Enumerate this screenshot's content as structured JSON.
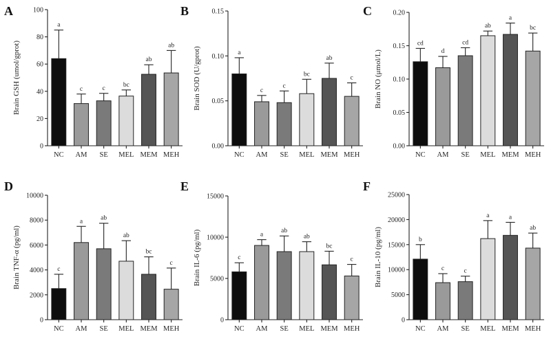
{
  "colors": {
    "NC": "#0d0d0d",
    "AM": "#9a9a9a",
    "SE": "#7a7a7a",
    "MEL": "#dcdcdc",
    "MEM": "#555555",
    "MEH": "#a6a6a6"
  },
  "chart_data": [
    {
      "panel": "A",
      "type": "bar",
      "ylabel": "Brain GSH (umol/gprot)",
      "ylim": [
        0,
        100
      ],
      "yticks": [
        "0",
        "20",
        "40",
        "60",
        "80",
        "100"
      ],
      "ytick_values": [
        0,
        20,
        40,
        60,
        80,
        100
      ],
      "categories": [
        "NC",
        "AM",
        "SE",
        "MEL",
        "MEM",
        "MEH"
      ],
      "values": [
        64,
        31,
        33,
        36.5,
        52.5,
        53.5
      ],
      "errors": [
        21,
        7,
        5.5,
        4.5,
        7,
        16.5
      ],
      "sig": [
        "a",
        "c",
        "c",
        "bc",
        "ab",
        "ab"
      ]
    },
    {
      "panel": "B",
      "type": "bar",
      "ylabel": "Brain SOD (U/gprot)",
      "ylim": [
        0,
        0.15
      ],
      "yticks": [
        "0.00",
        "0.05",
        "0.10",
        "0.15"
      ],
      "ytick_values": [
        0,
        0.05,
        0.1,
        0.15
      ],
      "categories": [
        "NC",
        "AM",
        "SE",
        "MEL",
        "MEM",
        "MEH"
      ],
      "values": [
        0.08,
        0.049,
        0.048,
        0.058,
        0.075,
        0.055
      ],
      "errors": [
        0.018,
        0.007,
        0.013,
        0.016,
        0.017,
        0.015
      ],
      "sig": [
        "a",
        "c",
        "c",
        "bc",
        "ab",
        "c"
      ]
    },
    {
      "panel": "C",
      "type": "bar",
      "ylabel": "Brain NO (μmol/L)",
      "ylim": [
        0,
        0.2
      ],
      "yticks": [
        "0.00",
        "0.05",
        "0.10",
        "0.15",
        "0.20"
      ],
      "ytick_values": [
        0,
        0.05,
        0.1,
        0.15,
        0.2
      ],
      "categories": [
        "NC",
        "AM",
        "SE",
        "MEL",
        "MEM",
        "MEH"
      ],
      "values": [
        0.126,
        0.117,
        0.135,
        0.165,
        0.167,
        0.142
      ],
      "errors": [
        0.02,
        0.017,
        0.012,
        0.007,
        0.017,
        0.027
      ],
      "sig": [
        "cd",
        "d",
        "cd",
        "ab",
        "a",
        "bc"
      ]
    },
    {
      "panel": "D",
      "type": "bar",
      "ylabel": "Brain TNF-α (pg/ml)",
      "ylim": [
        0,
        10000
      ],
      "yticks": [
        "0",
        "2000",
        "4000",
        "6000",
        "8000",
        "10000"
      ],
      "ytick_values": [
        0,
        2000,
        4000,
        6000,
        8000,
        10000
      ],
      "categories": [
        "NC",
        "AM",
        "SE",
        "MEL",
        "MEM",
        "MEH"
      ],
      "values": [
        2500,
        6200,
        5700,
        4700,
        3650,
        2450
      ],
      "errors": [
        1150,
        1300,
        2050,
        1650,
        1400,
        1700
      ],
      "sig": [
        "c",
        "a",
        "ab",
        "ab",
        "bc",
        "c"
      ]
    },
    {
      "panel": "E",
      "type": "bar",
      "ylabel": "Brain IL-6 (pg/ml)",
      "ylim": [
        0,
        15000
      ],
      "yticks": [
        "0",
        "5000",
        "10000",
        "15000"
      ],
      "ytick_values": [
        0,
        5000,
        10000,
        15000
      ],
      "categories": [
        "NC",
        "AM",
        "SE",
        "MEL",
        "MEM",
        "MEH"
      ],
      "values": [
        5800,
        9000,
        8250,
        8250,
        6650,
        5300
      ],
      "errors": [
        1100,
        700,
        1900,
        1200,
        1650,
        1400
      ],
      "sig": [
        "c",
        "a",
        "ab",
        "ab",
        "bc",
        "c"
      ]
    },
    {
      "panel": "F",
      "type": "bar",
      "ylabel": "Brain IL-10 (pg/ml)",
      "ylim": [
        0,
        25000
      ],
      "yticks": [
        "0",
        "5000",
        "10000",
        "15000",
        "20000",
        "25000"
      ],
      "ytick_values": [
        0,
        5000,
        10000,
        15000,
        20000,
        25000
      ],
      "categories": [
        "NC",
        "AM",
        "SE",
        "MEL",
        "MEM",
        "MEH"
      ],
      "values": [
        12100,
        7400,
        7600,
        16200,
        16850,
        14300
      ],
      "errors": [
        2900,
        1800,
        1100,
        3600,
        2600,
        3000
      ],
      "sig": [
        "b",
        "c",
        "c",
        "a",
        "a",
        "ab"
      ]
    }
  ]
}
